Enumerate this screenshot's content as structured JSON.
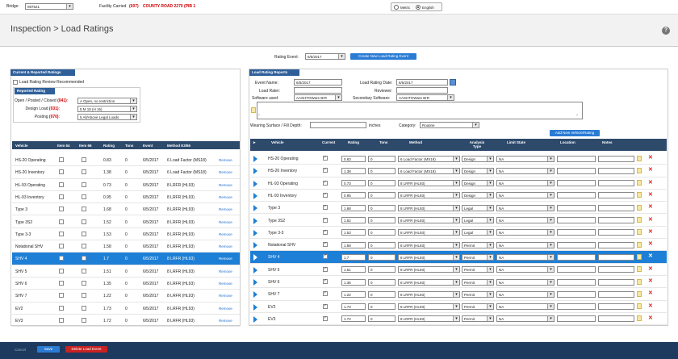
{
  "topbar": {
    "bridge_label": "Bridge:",
    "bridge_value": "087621",
    "facility_label": "Facility Carried",
    "facility_code": "(007)",
    "facility_value": "COUNTY ROAD 2270 (PIB 1",
    "units": [
      "Metric",
      "English"
    ],
    "units_selected": "English"
  },
  "header": {
    "title": "Inspection > Load Ratings",
    "help": "?"
  },
  "rating_event": {
    "label": "Rating Event:",
    "value": "6/5/2017",
    "create_button": "Create New Load Rating Event"
  },
  "left_panel": {
    "title": "Current & Reported Ratings",
    "review_label": "Load Rating Review Recommended",
    "reported_rating_title": "Reported Rating",
    "fields": [
      {
        "label": "Open / Posted / Closed",
        "code": "(041)",
        "value": "A Open, no restriction"
      },
      {
        "label": "Design Load",
        "code": "(031)",
        "value": "5 M 18 (H 16)"
      },
      {
        "label": "Posting",
        "code": "(070)",
        "value": "5 All/Above Legal Loads"
      }
    ],
    "columns": [
      "Vehicle",
      "Item 64",
      "Item 66",
      "Rating",
      "Tons",
      "Event",
      "Method E3/65",
      ""
    ],
    "rows": [
      {
        "vehicle": "HS-20 Operating",
        "rating": "0.83",
        "tons": "0",
        "event": "6/5/2017",
        "method": "6 Load Factor (MS18)",
        "remove": "Remove"
      },
      {
        "vehicle": "HS-20 Inventory",
        "rating": "1.38",
        "tons": "0",
        "event": "6/5/2017",
        "method": "6 Load Factor (MS18)",
        "remove": "Remove"
      },
      {
        "vehicle": "HL-93 Operating",
        "rating": "0.73",
        "tons": "0",
        "event": "6/5/2017",
        "method": "8 LRFR (HL93)",
        "remove": "Remove"
      },
      {
        "vehicle": "HL-93 Inventory",
        "rating": "0.95",
        "tons": "0",
        "event": "6/5/2017",
        "method": "8 LRFR (HL93)",
        "remove": "Remove"
      },
      {
        "vehicle": "Type 3",
        "rating": "1.68",
        "tons": "0",
        "event": "6/5/2017",
        "method": "8 LRFR (HL93)",
        "remove": "Remove"
      },
      {
        "vehicle": "Type 3S2",
        "rating": "1.52",
        "tons": "0",
        "event": "6/5/2017",
        "method": "8 LRFR (HL93)",
        "remove": "Remove"
      },
      {
        "vehicle": "Type 3-3",
        "rating": "1.53",
        "tons": "0",
        "event": "6/5/2017",
        "method": "8 LRFR (HL93)",
        "remove": "Remove"
      },
      {
        "vehicle": "Notational SHV",
        "rating": "1.58",
        "tons": "0",
        "event": "6/5/2017",
        "method": "8 LRFR (HL93)",
        "remove": "Remove"
      },
      {
        "vehicle": "SHV 4",
        "rating": "1.7",
        "tons": "0",
        "event": "6/5/2017",
        "method": "8 LRFR (HL93)",
        "remove": "Remove",
        "selected": true
      },
      {
        "vehicle": "SHV 5",
        "rating": "1.51",
        "tons": "0",
        "event": "6/5/2017",
        "method": "8 LRFR (HL93)",
        "remove": "Remove"
      },
      {
        "vehicle": "SHV 6",
        "rating": "1.35",
        "tons": "0",
        "event": "6/5/2017",
        "method": "8 LRFR (HL93)",
        "remove": "Remove"
      },
      {
        "vehicle": "SHV 7",
        "rating": "1.22",
        "tons": "0",
        "event": "6/5/2017",
        "method": "8 LRFR (HL93)",
        "remove": "Remove"
      },
      {
        "vehicle": "EV2",
        "rating": "1.73",
        "tons": "0",
        "event": "6/5/2017",
        "method": "8 LRFR (HL93)",
        "remove": "Remove"
      },
      {
        "vehicle": "EV3",
        "rating": "1.72",
        "tons": "0",
        "event": "6/5/2017",
        "method": "8 LRFR (HL93)",
        "remove": "Remove"
      }
    ]
  },
  "right_panel": {
    "title": "Load Rating Reports",
    "event_name_label": "Event Name:",
    "event_name_value": "6/5/2017",
    "load_rater_label": "Load Rater:",
    "software_label": "Software used:",
    "software_value": "AASHTOWare BrR",
    "rating_date_label": "Load Rating Date:",
    "rating_date_value": "6/5/2017",
    "reviewer_label": "Reviewer:",
    "secondary_label": "Secondary Software:",
    "secondary_value": "AASHTOWare BrR",
    "wearing_label": "Wearing Surface / Fill Depth:",
    "wearing_unit": "inches",
    "category_label": "Category:",
    "category_value": "Routine",
    "add_vehicle_button": "Add New Vehicle/Rating",
    "columns": [
      "Vehicle",
      "Current",
      "Rating",
      "Tons",
      "Method",
      "Analysis Type",
      "Limit State",
      "Location",
      "Notes"
    ],
    "rows": [
      {
        "vehicle": "HS-20 Operating",
        "rating": "0.83",
        "tons": "0",
        "method": "6 Load Factor (MS18)",
        "analysis": "Design",
        "limit": "NA"
      },
      {
        "vehicle": "HS-20 Inventory",
        "rating": "1.38",
        "tons": "0",
        "method": "6 Load Factor (MS18)",
        "analysis": "Design",
        "limit": "NA"
      },
      {
        "vehicle": "HL-93 Operating",
        "rating": "0.73",
        "tons": "0",
        "method": "8 LRFR (HL93)",
        "analysis": "Design",
        "limit": "NA"
      },
      {
        "vehicle": "HL-93 Inventory",
        "rating": "0.95",
        "tons": "0",
        "method": "8 LRFR (HL93)",
        "analysis": "Design",
        "limit": "NA"
      },
      {
        "vehicle": "Type 3",
        "rating": "1.68",
        "tons": "0",
        "method": "8 LRFR (HL93)",
        "analysis": "Legal",
        "limit": "NA"
      },
      {
        "vehicle": "Type 3S2",
        "rating": "1.52",
        "tons": "0",
        "method": "8 LRFR (HL93)",
        "analysis": "Legal",
        "limit": "NA"
      },
      {
        "vehicle": "Type 3-3",
        "rating": "1.53",
        "tons": "0",
        "method": "8 LRFR (HL93)",
        "analysis": "Legal",
        "limit": "NA"
      },
      {
        "vehicle": "Notational SHV",
        "rating": "1.58",
        "tons": "0",
        "method": "8 LRFR (HL93)",
        "analysis": "Permit",
        "limit": "NA"
      },
      {
        "vehicle": "SHV 4",
        "rating": "1.7",
        "tons": "0",
        "method": "8 LRFR (HL93)",
        "analysis": "Permit",
        "limit": "NA",
        "selected": true
      },
      {
        "vehicle": "SHV 5",
        "rating": "1.51",
        "tons": "0",
        "method": "8 LRFR (HL93)",
        "analysis": "Permit",
        "limit": "NA"
      },
      {
        "vehicle": "SHV 6",
        "rating": "1.35",
        "tons": "0",
        "method": "8 LRFR (HL93)",
        "analysis": "Permit",
        "limit": "NA"
      },
      {
        "vehicle": "SHV 7",
        "rating": "1.22",
        "tons": "0",
        "method": "8 LRFR (HL93)",
        "analysis": "Permit",
        "limit": "NA"
      },
      {
        "vehicle": "EV2",
        "rating": "1.73",
        "tons": "0",
        "method": "8 LRFR (HL93)",
        "analysis": "Permit",
        "limit": "NA"
      },
      {
        "vehicle": "EV3",
        "rating": "1.72",
        "tons": "0",
        "method": "8 LRFR (HL93)",
        "analysis": "Permit",
        "limit": "NA"
      }
    ]
  },
  "footer": {
    "cancel": "Cancel",
    "save": "Save",
    "delete": "Delete Load Event"
  },
  "colors": {
    "accent": "#1e7fd6",
    "header_dark": "#2d4a6b",
    "footer": "#1e3a5f",
    "danger": "#cc2222"
  }
}
